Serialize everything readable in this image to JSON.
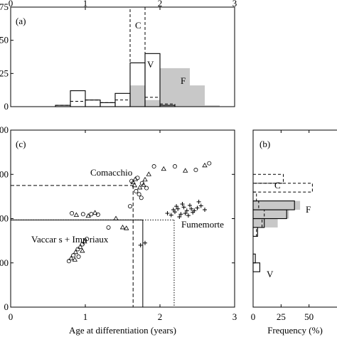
{
  "chart_data": [
    {
      "panel": "(a)",
      "type": "bar",
      "xlim": [
        0,
        3
      ],
      "ylim": [
        0,
        75
      ],
      "x_ticks": [
        "0",
        "1",
        "2",
        "3"
      ],
      "y_ticks": [
        "0",
        "25",
        "50",
        "75"
      ],
      "series": [
        {
          "name": "C",
          "style": "dashed outline",
          "bins": [
            [
              0.6,
              0.8,
              1
            ],
            [
              0.8,
              1.0,
              4
            ],
            [
              1.0,
              1.2,
              5
            ],
            [
              1.2,
              1.4,
              3
            ],
            [
              1.4,
              1.6,
              5
            ],
            [
              1.6,
              1.8,
              75
            ],
            [
              1.8,
              2.0,
              7
            ],
            [
              2.0,
              2.2,
              2
            ]
          ]
        },
        {
          "name": "V",
          "style": "solid outline",
          "bins": [
            [
              0.6,
              0.8,
              1
            ],
            [
              0.8,
              1.0,
              12
            ],
            [
              1.0,
              1.2,
              5
            ],
            [
              1.2,
              1.4,
              3
            ],
            [
              1.4,
              1.6,
              10
            ],
            [
              1.6,
              1.8,
              33
            ],
            [
              1.8,
              2.0,
              40
            ],
            [
              2.0,
              2.2,
              1
            ]
          ]
        },
        {
          "name": "F",
          "style": "grey fill",
          "bins": [
            [
              1.6,
              1.8,
              16
            ],
            [
              1.8,
              2.0,
              5
            ],
            [
              2.0,
              2.2,
              29
            ],
            [
              2.2,
              2.4,
              29
            ],
            [
              2.4,
              2.6,
              16
            ],
            [
              2.6,
              2.8,
              1
            ]
          ]
        }
      ],
      "labels": [
        "C",
        "V",
        "F"
      ]
    },
    {
      "panel": "(c)",
      "type": "scatter",
      "xlabel": "Age at differentiation (years)",
      "xlim": [
        0,
        3
      ],
      "ylim": [
        0,
        400
      ],
      "x_ticks": [
        "0",
        "1",
        "2",
        "3"
      ],
      "y_ticks": [
        "0",
        "100",
        "200",
        "300",
        "400"
      ],
      "series": [
        {
          "name": "Comacchio",
          "marker": "triangle/circle",
          "x": [
            1.5,
            1.62,
            1.66,
            1.7,
            1.73,
            1.76,
            1.8,
            1.68,
            1.64,
            1.72,
            1.78,
            1.82,
            1.67,
            1.75,
            1.85,
            1.92,
            2.05,
            2.2,
            2.34,
            2.48,
            2.6,
            2.66,
            1.41,
            1.31,
            1.55,
            1.6
          ],
          "y": [
            180,
            285,
            275,
            292,
            270,
            280,
            288,
            262,
            282,
            255,
            276,
            269,
            289,
            247,
            300,
            318,
            312,
            318,
            308,
            310,
            320,
            325,
            200,
            180,
            178,
            228
          ]
        },
        {
          "name": "Fumemorte",
          "marker": "plus",
          "x": [
            2.1,
            2.15,
            2.2,
            2.24,
            2.28,
            2.32,
            2.36,
            2.4,
            2.44,
            2.5,
            2.55,
            2.6,
            2.18,
            2.26,
            2.34,
            2.42,
            2.22,
            2.3,
            2.38,
            2.46,
            1.74,
            1.8,
            2.52
          ],
          "y": [
            212,
            208,
            215,
            222,
            210,
            226,
            218,
            230,
            214,
            224,
            229,
            220,
            220,
            204,
            212,
            222,
            228,
            233,
            207,
            218,
            140,
            145,
            238
          ]
        },
        {
          "name": "Vaccarès + Impériaux",
          "marker": "circle/triangle",
          "x": [
            0.78,
            0.81,
            0.84,
            0.87,
            0.9,
            0.93,
            0.96,
            0.99,
            1.02,
            0.86,
            0.91,
            0.96,
            0.82,
            0.88,
            0.97,
            1.04,
            1.08,
            1.13,
            1.17
          ],
          "y": [
            104,
            110,
            117,
            124,
            131,
            136,
            142,
            148,
            154,
            107,
            114,
            127,
            212,
            208,
            210,
            206,
            210,
            213,
            209
          ]
        }
      ],
      "guides": [
        {
          "series": "C",
          "style": "dashed",
          "y": 275,
          "x": 1.64
        },
        {
          "series": "V",
          "style": "solid",
          "y": 197,
          "x": 1.77
        },
        {
          "series": "F",
          "style": "dotted",
          "y": 197,
          "x": 2.19
        }
      ],
      "annotations": [
        "Comacchio",
        "Fumemorte",
        "Vaccar s + Imp riaux"
      ]
    },
    {
      "panel": "(b)",
      "type": "bar",
      "orientation": "horizontal",
      "xlabel": "Frequency (%)",
      "xlim": [
        0,
        75
      ],
      "ylim": [
        0,
        400
      ],
      "x_ticks": [
        "0",
        "25",
        "50"
      ],
      "series": [
        {
          "name": "C",
          "style": "dashed outline",
          "bins": [
            [
              160,
              180,
              3
            ],
            [
              180,
              200,
              8
            ],
            [
              200,
              220,
              10
            ],
            [
              220,
              240,
              5
            ],
            [
              240,
              260,
              3
            ],
            [
              260,
              280,
              53
            ],
            [
              280,
              300,
              27
            ]
          ]
        },
        {
          "name": "V",
          "style": "solid outline",
          "bins": [
            [
              80,
              100,
              6
            ],
            [
              100,
              120,
              2
            ],
            [
              160,
              180,
              4
            ],
            [
              180,
              200,
              10
            ],
            [
              200,
              220,
              30
            ],
            [
              220,
              240,
              37
            ]
          ]
        },
        {
          "name": "F",
          "style": "grey fill",
          "bins": [
            [
              180,
              200,
              22
            ],
            [
              200,
              220,
              32
            ],
            [
              220,
              240,
              42
            ]
          ]
        }
      ],
      "labels": [
        "C",
        "F",
        "V"
      ]
    }
  ]
}
